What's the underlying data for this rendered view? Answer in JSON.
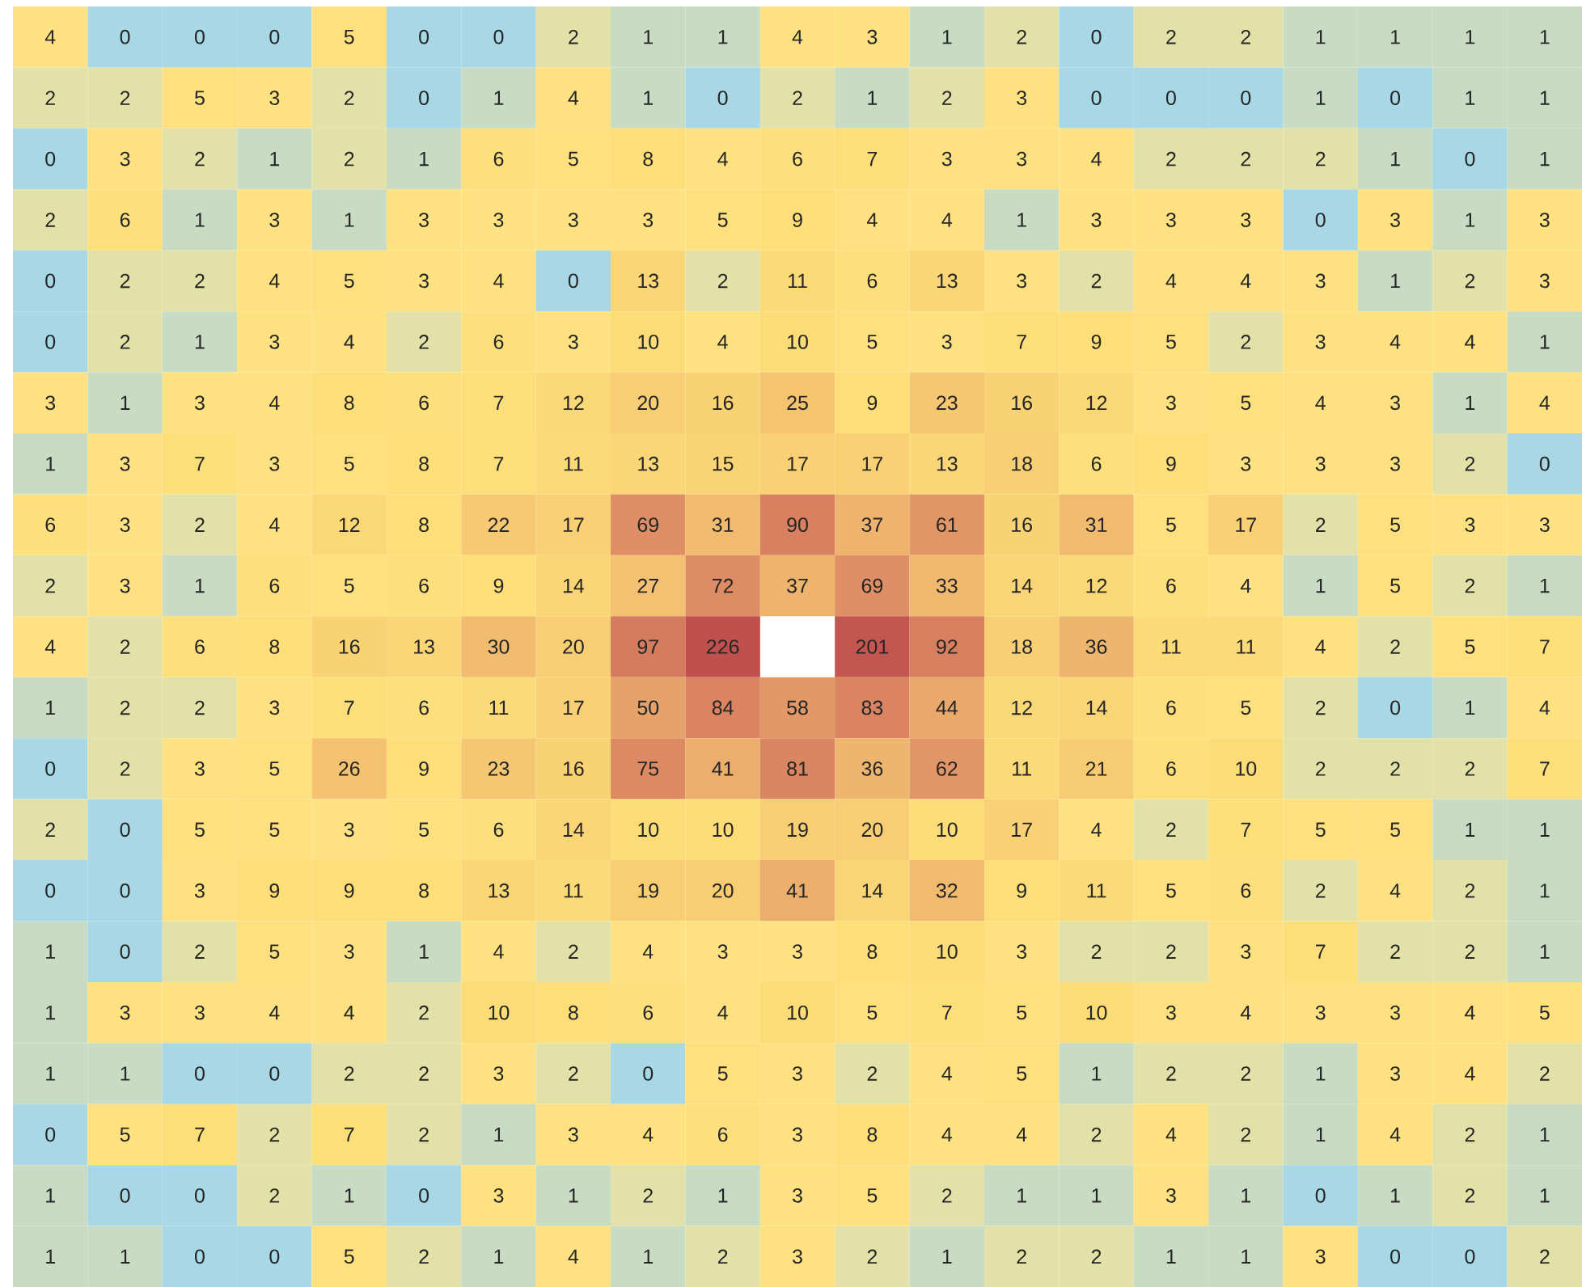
{
  "chart_data": {
    "type": "heatmap",
    "categories": [
      null,
      null,
      null,
      null,
      null,
      null,
      null,
      null,
      null,
      null,
      null,
      null,
      null,
      null,
      null,
      null,
      null,
      null,
      null,
      null,
      null
    ],
    "y_categories": [
      null,
      null,
      null,
      null,
      null,
      null,
      null,
      null,
      null,
      null,
      null,
      null,
      null,
      null,
      null,
      null,
      null,
      null,
      null,
      null,
      null
    ],
    "cells": [
      [
        4,
        0,
        0,
        0,
        5,
        0,
        0,
        2,
        1,
        1,
        4,
        3,
        1,
        2,
        0,
        2,
        2,
        1,
        1,
        1,
        1
      ],
      [
        2,
        2,
        5,
        3,
        2,
        0,
        1,
        4,
        1,
        0,
        2,
        1,
        2,
        3,
        0,
        0,
        0,
        1,
        0,
        1,
        1
      ],
      [
        0,
        3,
        2,
        1,
        2,
        1,
        6,
        5,
        8,
        4,
        6,
        7,
        3,
        3,
        4,
        2,
        2,
        2,
        1,
        0,
        1
      ],
      [
        2,
        6,
        1,
        3,
        1,
        3,
        3,
        3,
        3,
        5,
        9,
        4,
        4,
        1,
        3,
        3,
        3,
        0,
        3,
        1,
        3
      ],
      [
        0,
        2,
        2,
        4,
        5,
        3,
        4,
        0,
        13,
        2,
        11,
        6,
        13,
        3,
        2,
        4,
        4,
        3,
        1,
        2,
        3
      ],
      [
        0,
        2,
        1,
        3,
        4,
        2,
        6,
        3,
        10,
        4,
        10,
        5,
        3,
        7,
        9,
        5,
        2,
        3,
        4,
        4,
        1
      ],
      [
        3,
        1,
        3,
        4,
        8,
        6,
        7,
        12,
        20,
        16,
        25,
        9,
        23,
        16,
        12,
        3,
        5,
        4,
        3,
        1,
        4
      ],
      [
        1,
        3,
        7,
        3,
        5,
        8,
        7,
        11,
        13,
        15,
        17,
        17,
        13,
        18,
        6,
        9,
        3,
        3,
        3,
        2,
        0
      ],
      [
        6,
        3,
        2,
        4,
        12,
        8,
        22,
        17,
        69,
        31,
        90,
        37,
        61,
        16,
        31,
        5,
        17,
        2,
        5,
        3,
        3
      ],
      [
        2,
        3,
        1,
        6,
        5,
        6,
        9,
        14,
        27,
        72,
        37,
        69,
        33,
        14,
        12,
        6,
        4,
        1,
        5,
        2,
        1
      ],
      [
        4,
        2,
        6,
        8,
        16,
        13,
        30,
        20,
        97,
        226,
        null,
        201,
        92,
        18,
        36,
        11,
        11,
        4,
        2,
        5,
        7
      ],
      [
        1,
        2,
        2,
        3,
        7,
        6,
        11,
        17,
        50,
        84,
        58,
        83,
        44,
        12,
        14,
        6,
        5,
        2,
        0,
        1,
        4
      ],
      [
        0,
        2,
        3,
        5,
        26,
        9,
        23,
        16,
        75,
        41,
        81,
        36,
        62,
        11,
        21,
        6,
        10,
        2,
        2,
        2,
        7
      ],
      [
        2,
        0,
        5,
        5,
        3,
        5,
        6,
        14,
        10,
        10,
        19,
        20,
        10,
        17,
        4,
        2,
        7,
        5,
        5,
        1,
        1
      ],
      [
        0,
        0,
        3,
        9,
        9,
        8,
        13,
        11,
        19,
        20,
        41,
        14,
        32,
        9,
        11,
        5,
        6,
        2,
        4,
        2,
        1
      ],
      [
        1,
        0,
        2,
        5,
        3,
        1,
        4,
        2,
        4,
        3,
        3,
        8,
        10,
        3,
        2,
        2,
        3,
        7,
        2,
        2,
        1
      ],
      [
        1,
        3,
        3,
        4,
        4,
        2,
        10,
        8,
        6,
        4,
        10,
        5,
        7,
        5,
        10,
        3,
        4,
        3,
        3,
        4,
        5
      ],
      [
        1,
        1,
        0,
        0,
        2,
        2,
        3,
        2,
        0,
        5,
        3,
        2,
        4,
        5,
        1,
        2,
        2,
        1,
        3,
        4,
        2
      ],
      [
        0,
        5,
        7,
        2,
        7,
        2,
        1,
        3,
        4,
        6,
        3,
        8,
        4,
        4,
        2,
        4,
        2,
        1,
        4,
        2,
        1
      ],
      [
        1,
        0,
        0,
        2,
        1,
        0,
        3,
        1,
        2,
        1,
        3,
        5,
        2,
        1,
        1,
        3,
        1,
        0,
        1,
        2,
        1
      ],
      [
        1,
        1,
        0,
        0,
        5,
        2,
        1,
        4,
        1,
        2,
        3,
        2,
        1,
        2,
        2,
        1,
        1,
        3,
        0,
        0,
        2
      ]
    ],
    "data_labels": true,
    "tick_labels": false
  }
}
